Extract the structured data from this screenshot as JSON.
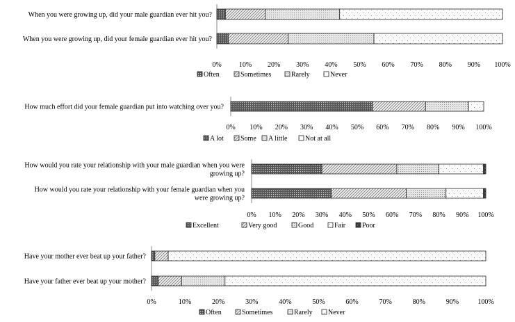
{
  "chart_data": [
    {
      "type": "bar",
      "orientation": "horizontal",
      "stacked": "percent",
      "categories": [
        "When you were growing up, did your male guardian ever hit you?",
        "When you were growing up, did your female guardian ever hit you?"
      ],
      "series": [
        {
          "name": "Often",
          "pattern": "dots-dark",
          "values": [
            3,
            4
          ]
        },
        {
          "name": "Sometimes",
          "pattern": "diag",
          "values": [
            14,
            21
          ]
        },
        {
          "name": "Rarely",
          "pattern": "dots-light",
          "values": [
            26,
            30
          ]
        },
        {
          "name": "Never",
          "pattern": "sparse",
          "values": [
            57,
            45
          ]
        }
      ],
      "xticks": [
        "0%",
        "10%",
        "20%",
        "30%",
        "40%",
        "50%",
        "60%",
        "70%",
        "80%",
        "90%",
        "100%"
      ],
      "xlim": [
        0,
        100
      ],
      "legend_position": "bottom"
    },
    {
      "type": "bar",
      "orientation": "horizontal",
      "stacked": "percent",
      "categories": [
        "How much effort did your female guardian put into watching over you?"
      ],
      "series": [
        {
          "name": "A lot",
          "pattern": "dots-dark",
          "values": [
            56
          ]
        },
        {
          "name": "Some",
          "pattern": "diag",
          "values": [
            21
          ]
        },
        {
          "name": "A little",
          "pattern": "dots-light",
          "values": [
            17
          ]
        },
        {
          "name": "Not at all",
          "pattern": "sparse",
          "values": [
            6
          ]
        }
      ],
      "xticks": [
        "0%",
        "10%",
        "20%",
        "30%",
        "40%",
        "50%",
        "60%",
        "70%",
        "80%",
        "90%",
        "100%"
      ],
      "xlim": [
        0,
        100
      ],
      "legend_position": "bottom"
    },
    {
      "type": "bar",
      "orientation": "horizontal",
      "stacked": "percent",
      "categories": [
        [
          "How would you rate your relationship with your male guardian when you were",
          "growing up?"
        ],
        [
          "How would you rate your relationship with your female guardian when you",
          "were growing up?"
        ]
      ],
      "series": [
        {
          "name": "Excellent",
          "pattern": "dots-dark",
          "values": [
            30,
            34
          ]
        },
        {
          "name": "Very good",
          "pattern": "diag",
          "values": [
            32,
            32
          ]
        },
        {
          "name": "Good",
          "pattern": "dots-light",
          "values": [
            18,
            17
          ]
        },
        {
          "name": "Fair",
          "pattern": "sparse",
          "values": [
            19,
            16
          ]
        },
        {
          "name": "Poor",
          "pattern": "solid-dark",
          "values": [
            1,
            1
          ]
        }
      ],
      "xticks": [
        "0%",
        "10%",
        "20%",
        "30%",
        "40%",
        "50%",
        "60%",
        "70%",
        "80%",
        "90%",
        "100%"
      ],
      "xlim": [
        0,
        100
      ],
      "legend_position": "bottom"
    },
    {
      "type": "bar",
      "orientation": "horizontal",
      "stacked": "percent",
      "categories": [
        "Have your mother ever beat up your father?",
        "Have your father ever beat up your mother?"
      ],
      "series": [
        {
          "name": "Often",
          "pattern": "dots-dark",
          "values": [
            1,
            2
          ]
        },
        {
          "name": "Sometimes",
          "pattern": "diag",
          "values": [
            4,
            7
          ]
        },
        {
          "name": "Rarely",
          "pattern": "dots-light",
          "values": [
            0,
            13
          ]
        },
        {
          "name": "Never",
          "pattern": "sparse",
          "values": [
            95,
            78
          ]
        }
      ],
      "xticks": [
        "0%",
        "10%",
        "20%",
        "30%",
        "40%",
        "50%",
        "60%",
        "70%",
        "80%",
        "90%",
        "100%"
      ],
      "xlim": [
        0,
        100
      ],
      "legend_position": "bottom"
    }
  ]
}
